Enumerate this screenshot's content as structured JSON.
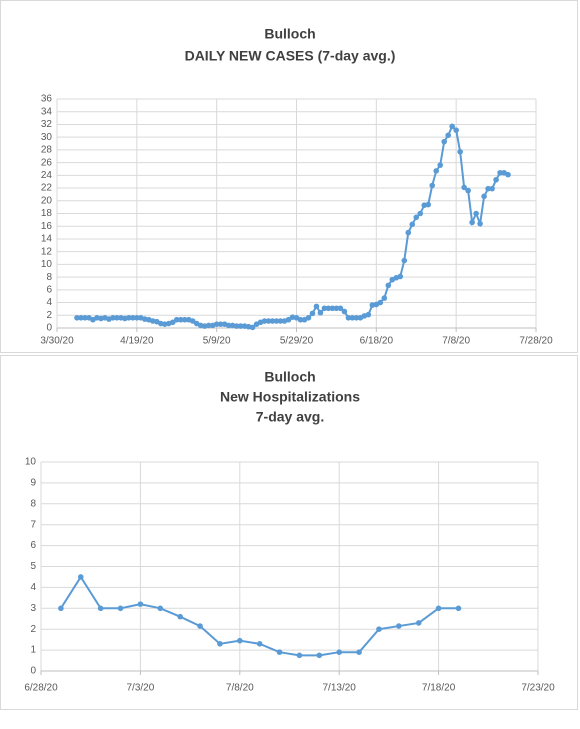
{
  "chart_data": [
    {
      "type": "line",
      "title": [
        "Bulloch",
        "DAILY NEW CASES (7-day avg.)"
      ],
      "x": [
        "4/4/20",
        "4/5/20",
        "4/6/20",
        "4/7/20",
        "4/8/20",
        "4/9/20",
        "4/10/20",
        "4/11/20",
        "4/12/20",
        "4/13/20",
        "4/14/20",
        "4/15/20",
        "4/16/20",
        "4/17/20",
        "4/18/20",
        "4/19/20",
        "4/20/20",
        "4/21/20",
        "4/22/20",
        "4/23/20",
        "4/24/20",
        "4/25/20",
        "4/26/20",
        "4/27/20",
        "4/28/20",
        "4/29/20",
        "4/30/20",
        "5/1/20",
        "5/2/20",
        "5/3/20",
        "5/4/20",
        "5/5/20",
        "5/6/20",
        "5/7/20",
        "5/8/20",
        "5/9/20",
        "5/10/20",
        "5/11/20",
        "5/12/20",
        "5/13/20",
        "5/14/20",
        "5/15/20",
        "5/16/20",
        "5/17/20",
        "5/18/20",
        "5/19/20",
        "5/20/20",
        "5/21/20",
        "5/22/20",
        "5/23/20",
        "5/24/20",
        "5/25/20",
        "5/26/20",
        "5/27/20",
        "5/28/20",
        "5/29/20",
        "5/30/20",
        "5/31/20",
        "6/1/20",
        "6/2/20",
        "6/3/20",
        "6/4/20",
        "6/5/20",
        "6/6/20",
        "6/7/20",
        "6/8/20",
        "6/9/20",
        "6/10/20",
        "6/11/20",
        "6/12/20",
        "6/13/20",
        "6/14/20",
        "6/15/20",
        "6/16/20",
        "6/17/20",
        "6/18/20",
        "6/19/20",
        "6/20/20",
        "6/21/20",
        "6/22/20",
        "6/23/20",
        "6/24/20",
        "6/25/20",
        "6/26/20",
        "6/27/20",
        "6/28/20",
        "6/29/20",
        "6/30/20",
        "7/1/20",
        "7/2/20",
        "7/3/20",
        "7/4/20",
        "7/5/20",
        "7/6/20",
        "7/7/20",
        "7/8/20",
        "7/9/20",
        "7/10/20",
        "7/11/20",
        "7/12/20",
        "7/13/20",
        "7/14/20",
        "7/15/20",
        "7/16/20",
        "7/17/20",
        "7/18/20",
        "7/19/20",
        "7/20/20",
        "7/21/20"
      ],
      "series": [
        {
          "color": "#5b9bd5",
          "values": [
            1.6,
            1.6,
            1.6,
            1.6,
            1.3,
            1.6,
            1.5,
            1.6,
            1.4,
            1.6,
            1.6,
            1.6,
            1.5,
            1.6,
            1.6,
            1.6,
            1.6,
            1.4,
            1.3,
            1.1,
            1.0,
            0.7,
            0.6,
            0.7,
            0.9,
            1.3,
            1.3,
            1.3,
            1.3,
            1.1,
            0.7,
            0.4,
            0.3,
            0.4,
            0.4,
            0.6,
            0.6,
            0.6,
            0.4,
            0.4,
            0.3,
            0.3,
            0.3,
            0.2,
            0.1,
            0.6,
            0.9,
            1.1,
            1.1,
            1.1,
            1.1,
            1.1,
            1.1,
            1.3,
            1.7,
            1.6,
            1.3,
            1.3,
            1.6,
            2.3,
            3.4,
            2.4,
            3.1,
            3.1,
            3.1,
            3.1,
            3.1,
            2.6,
            1.6,
            1.6,
            1.6,
            1.6,
            1.9,
            2.1,
            3.6,
            3.7,
            4.0,
            4.7,
            6.7,
            7.6,
            7.9,
            8.1,
            10.6,
            15.0,
            16.3,
            17.4,
            18.0,
            19.3,
            19.4,
            22.4,
            24.7,
            25.6,
            29.3,
            30.3,
            31.7,
            31.1,
            27.7,
            22.1,
            21.6,
            16.6,
            18.0,
            16.4,
            20.7,
            21.9,
            21.9,
            23.3,
            24.4,
            24.4,
            24.1
          ]
        }
      ],
      "xlim": [
        "3/30/20",
        "7/28/20"
      ],
      "xticks": [
        "3/30/20",
        "4/19/20",
        "5/9/20",
        "5/29/20",
        "6/18/20",
        "7/8/20",
        "7/28/20"
      ],
      "ylim": [
        0,
        36
      ],
      "yticks": [
        0,
        2,
        4,
        6,
        8,
        10,
        12,
        14,
        16,
        18,
        20,
        22,
        24,
        26,
        28,
        30,
        32,
        34,
        36
      ],
      "grid": true
    },
    {
      "type": "line",
      "title": [
        "Bulloch",
        "New Hospitalizations",
        "7-day avg."
      ],
      "x": [
        "6/29/20",
        "6/30/20",
        "7/1/20",
        "7/2/20",
        "7/3/20",
        "7/4/20",
        "7/5/20",
        "7/6/20",
        "7/7/20",
        "7/8/20",
        "7/9/20",
        "7/10/20",
        "7/11/20",
        "7/12/20",
        "7/13/20",
        "7/14/20",
        "7/15/20",
        "7/16/20",
        "7/17/20",
        "7/18/20",
        "7/19/20"
      ],
      "series": [
        {
          "color": "#5b9bd5",
          "values": [
            3.0,
            4.5,
            3.0,
            3.0,
            3.2,
            3.0,
            2.6,
            2.15,
            1.3,
            1.45,
            1.3,
            0.9,
            0.75,
            0.75,
            0.9,
            0.9,
            2.0,
            2.15,
            2.3,
            3.0,
            3.0
          ]
        }
      ],
      "xlim": [
        "6/28/20",
        "7/23/20"
      ],
      "xticks": [
        "6/28/20",
        "7/3/20",
        "7/8/20",
        "7/13/20",
        "7/18/20",
        "7/23/20"
      ],
      "ylim": [
        0,
        10
      ],
      "yticks": [
        0,
        1,
        2,
        3,
        4,
        5,
        6,
        7,
        8,
        9,
        10
      ],
      "grid": true
    }
  ]
}
